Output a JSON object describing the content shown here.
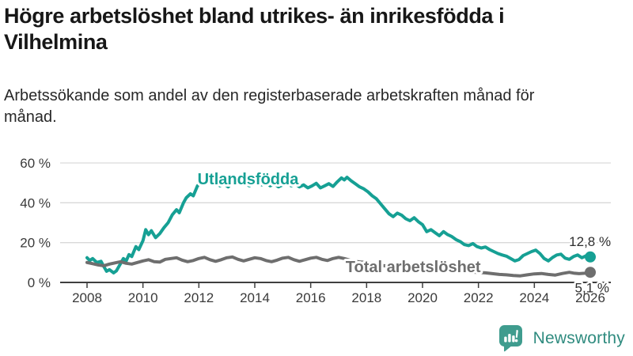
{
  "header": {
    "title": "Högre arbetslöshet bland utrikes- än inrikesfödda i Vilhelmina",
    "subtitle": "Arbetssökande som andel av den registerbaserade arbetskraften månad för månad."
  },
  "footer": {
    "brand": "Newsworthy",
    "logo_icon": "bar-chart-exclamation-pin-icon",
    "logo_color": "#3f9c8e",
    "brand_text_color": "#2f8b7f"
  },
  "chart_data": {
    "type": "line",
    "title": "",
    "xlabel": "",
    "ylabel": "",
    "grid": true,
    "style": {
      "grid_color": "#d9d9d9",
      "axis_color": "#3f3f3f",
      "tick_color": "#3a3a3a",
      "background": "#ffffff"
    },
    "x_axis": {
      "ticks": [
        2008,
        2010,
        2012,
        2014,
        2016,
        2018,
        2020,
        2022,
        2024,
        2026
      ],
      "range": [
        2008,
        2026
      ]
    },
    "y_axis": {
      "ticks": [
        0,
        20,
        40,
        60
      ],
      "tick_suffix": " %",
      "range": [
        0,
        65
      ]
    },
    "series": [
      {
        "name": "Utlandsfödda",
        "color": "#16a094",
        "end_value": 12.8,
        "end_label": "12,8 %",
        "points": [
          [
            2008.0,
            12.4
          ],
          [
            2008.1,
            11.0
          ],
          [
            2008.2,
            12.0
          ],
          [
            2008.35,
            10.0
          ],
          [
            2008.5,
            10.6
          ],
          [
            2008.6,
            8.0
          ],
          [
            2008.7,
            5.6
          ],
          [
            2008.8,
            6.4
          ],
          [
            2008.95,
            4.8
          ],
          [
            2009.05,
            5.8
          ],
          [
            2009.2,
            9.5
          ],
          [
            2009.3,
            12.0
          ],
          [
            2009.4,
            10.8
          ],
          [
            2009.5,
            14.0
          ],
          [
            2009.6,
            13.0
          ],
          [
            2009.75,
            18.0
          ],
          [
            2009.85,
            16.5
          ],
          [
            2010.0,
            21.0
          ],
          [
            2010.1,
            26.5
          ],
          [
            2010.2,
            24.0
          ],
          [
            2010.3,
            26.0
          ],
          [
            2010.45,
            22.5
          ],
          [
            2010.6,
            24.5
          ],
          [
            2010.75,
            27.5
          ],
          [
            2010.9,
            30.0
          ],
          [
            2011.05,
            34.0
          ],
          [
            2011.2,
            36.5
          ],
          [
            2011.3,
            35.0
          ],
          [
            2011.45,
            40.0
          ],
          [
            2011.55,
            42.5
          ],
          [
            2011.7,
            44.5
          ],
          [
            2011.8,
            43.5
          ],
          [
            2011.95,
            48.5
          ],
          [
            2012.1,
            51.0
          ],
          [
            2012.2,
            49.5
          ],
          [
            2012.35,
            52.5
          ],
          [
            2012.5,
            50.5
          ],
          [
            2012.6,
            51.5
          ],
          [
            2012.75,
            48.5
          ],
          [
            2012.9,
            49.5
          ],
          [
            2013.05,
            48.0
          ],
          [
            2013.2,
            50.5
          ],
          [
            2013.35,
            51.0
          ],
          [
            2013.5,
            49.5
          ],
          [
            2013.65,
            50.5
          ],
          [
            2013.8,
            48.5
          ],
          [
            2013.95,
            49.5
          ],
          [
            2014.1,
            50.5
          ],
          [
            2014.25,
            49.0
          ],
          [
            2014.4,
            50.0
          ],
          [
            2014.55,
            48.5
          ],
          [
            2014.7,
            49.5
          ],
          [
            2014.85,
            48.0
          ],
          [
            2015.0,
            49.0
          ],
          [
            2015.15,
            50.0
          ],
          [
            2015.3,
            48.5
          ],
          [
            2015.45,
            49.5
          ],
          [
            2015.6,
            48.0
          ],
          [
            2015.75,
            49.0
          ],
          [
            2015.9,
            47.5
          ],
          [
            2016.05,
            48.5
          ],
          [
            2016.2,
            49.8
          ],
          [
            2016.35,
            47.5
          ],
          [
            2016.5,
            48.5
          ],
          [
            2016.65,
            49.6
          ],
          [
            2016.8,
            48.2
          ],
          [
            2016.95,
            50.5
          ],
          [
            2017.1,
            52.5
          ],
          [
            2017.2,
            51.5
          ],
          [
            2017.3,
            52.8
          ],
          [
            2017.45,
            51.0
          ],
          [
            2017.6,
            49.5
          ],
          [
            2017.75,
            48.0
          ],
          [
            2017.9,
            47.0
          ],
          [
            2018.05,
            45.5
          ],
          [
            2018.2,
            43.5
          ],
          [
            2018.35,
            42.0
          ],
          [
            2018.5,
            39.5
          ],
          [
            2018.65,
            37.0
          ],
          [
            2018.8,
            34.5
          ],
          [
            2018.95,
            33.0
          ],
          [
            2019.1,
            34.8
          ],
          [
            2019.25,
            33.8
          ],
          [
            2019.4,
            32.0
          ],
          [
            2019.55,
            31.0
          ],
          [
            2019.7,
            32.5
          ],
          [
            2019.85,
            30.5
          ],
          [
            2020.0,
            29.0
          ],
          [
            2020.15,
            25.5
          ],
          [
            2020.3,
            26.5
          ],
          [
            2020.45,
            25.0
          ],
          [
            2020.6,
            23.5
          ],
          [
            2020.75,
            25.5
          ],
          [
            2020.9,
            24.0
          ],
          [
            2021.05,
            23.0
          ],
          [
            2021.2,
            21.5
          ],
          [
            2021.35,
            20.5
          ],
          [
            2021.5,
            19.0
          ],
          [
            2021.65,
            18.5
          ],
          [
            2021.8,
            19.5
          ],
          [
            2021.95,
            18.0
          ],
          [
            2022.1,
            17.3
          ],
          [
            2022.25,
            17.8
          ],
          [
            2022.4,
            16.5
          ],
          [
            2022.55,
            15.5
          ],
          [
            2022.7,
            14.5
          ],
          [
            2022.85,
            13.8
          ],
          [
            2023.0,
            13.2
          ],
          [
            2023.15,
            12.0
          ],
          [
            2023.3,
            10.8
          ],
          [
            2023.45,
            11.5
          ],
          [
            2023.6,
            13.5
          ],
          [
            2023.75,
            14.5
          ],
          [
            2023.9,
            15.5
          ],
          [
            2024.05,
            16.2
          ],
          [
            2024.2,
            14.5
          ],
          [
            2024.35,
            12.0
          ],
          [
            2024.5,
            10.8
          ],
          [
            2024.65,
            12.5
          ],
          [
            2024.8,
            13.8
          ],
          [
            2024.95,
            14.2
          ],
          [
            2025.1,
            12.2
          ],
          [
            2025.25,
            11.6
          ],
          [
            2025.4,
            13.0
          ],
          [
            2025.55,
            13.8
          ],
          [
            2025.7,
            12.4
          ],
          [
            2025.85,
            13.4
          ],
          [
            2026.0,
            12.8
          ]
        ]
      },
      {
        "name": "Total arbetslöshet",
        "color": "#6e6e6e",
        "end_value": 5.1,
        "end_label": "5,1 %",
        "points": [
          [
            2008.0,
            10.0
          ],
          [
            2008.2,
            9.4
          ],
          [
            2008.4,
            8.8
          ],
          [
            2008.6,
            8.4
          ],
          [
            2008.8,
            9.2
          ],
          [
            2009.0,
            9.8
          ],
          [
            2009.2,
            10.4
          ],
          [
            2009.4,
            9.6
          ],
          [
            2009.6,
            9.2
          ],
          [
            2009.8,
            10.0
          ],
          [
            2010.0,
            10.8
          ],
          [
            2010.2,
            11.4
          ],
          [
            2010.4,
            10.4
          ],
          [
            2010.6,
            10.2
          ],
          [
            2010.8,
            11.6
          ],
          [
            2011.0,
            12.0
          ],
          [
            2011.2,
            12.4
          ],
          [
            2011.4,
            11.2
          ],
          [
            2011.6,
            10.4
          ],
          [
            2011.8,
            11.0
          ],
          [
            2012.0,
            12.0
          ],
          [
            2012.2,
            12.6
          ],
          [
            2012.4,
            11.4
          ],
          [
            2012.6,
            10.6
          ],
          [
            2012.8,
            11.4
          ],
          [
            2013.0,
            12.4
          ],
          [
            2013.2,
            12.8
          ],
          [
            2013.4,
            11.6
          ],
          [
            2013.6,
            10.8
          ],
          [
            2013.8,
            11.6
          ],
          [
            2014.0,
            12.4
          ],
          [
            2014.2,
            12.0
          ],
          [
            2014.4,
            11.0
          ],
          [
            2014.6,
            10.4
          ],
          [
            2014.8,
            11.2
          ],
          [
            2015.0,
            12.2
          ],
          [
            2015.2,
            12.6
          ],
          [
            2015.4,
            11.4
          ],
          [
            2015.6,
            10.6
          ],
          [
            2015.8,
            11.4
          ],
          [
            2016.0,
            12.2
          ],
          [
            2016.2,
            12.6
          ],
          [
            2016.4,
            11.6
          ],
          [
            2016.6,
            11.0
          ],
          [
            2016.8,
            12.0
          ],
          [
            2017.0,
            12.6
          ],
          [
            2017.2,
            12.0
          ],
          [
            2017.4,
            11.2
          ],
          [
            2017.6,
            10.6
          ],
          [
            2017.8,
            10.2
          ],
          [
            2018.0,
            10.0
          ],
          [
            2018.25,
            9.4
          ],
          [
            2018.5,
            8.6
          ],
          [
            2018.75,
            8.2
          ],
          [
            2019.0,
            8.4
          ],
          [
            2019.25,
            8.0
          ],
          [
            2019.5,
            7.4
          ],
          [
            2019.75,
            7.2
          ],
          [
            2020.0,
            7.8
          ],
          [
            2020.25,
            8.0
          ],
          [
            2020.5,
            7.4
          ],
          [
            2020.75,
            6.8
          ],
          [
            2021.0,
            6.6
          ],
          [
            2021.25,
            6.2
          ],
          [
            2021.5,
            5.6
          ],
          [
            2021.75,
            5.2
          ],
          [
            2022.0,
            5.0
          ],
          [
            2022.25,
            4.8
          ],
          [
            2022.5,
            4.4
          ],
          [
            2022.75,
            4.0
          ],
          [
            2023.0,
            3.8
          ],
          [
            2023.25,
            3.5
          ],
          [
            2023.5,
            3.3
          ],
          [
            2023.75,
            3.8
          ],
          [
            2024.0,
            4.3
          ],
          [
            2024.25,
            4.5
          ],
          [
            2024.5,
            4.0
          ],
          [
            2024.75,
            3.7
          ],
          [
            2025.0,
            4.5
          ],
          [
            2025.25,
            5.1
          ],
          [
            2025.4,
            4.7
          ],
          [
            2025.6,
            4.4
          ],
          [
            2025.8,
            4.6
          ],
          [
            2026.0,
            5.1
          ]
        ]
      }
    ],
    "annotations": [
      {
        "id": "label-utlandsfodda",
        "text": "Utlandsfödda",
        "x": 2011.95,
        "y": 49.3,
        "color": "#16a094",
        "size": 20,
        "weight": "bold",
        "anchor": "start",
        "halo": 6
      },
      {
        "id": "label-total-arbetsloshet",
        "text": "Total arbetslöshet",
        "x": 2017.25,
        "y": 5.2,
        "color": "#6e6e6e",
        "size": 20,
        "weight": "bold",
        "anchor": "start",
        "halo": 6
      },
      {
        "id": "end-value-utlandsfodda",
        "text": "12,8 %",
        "x": 2026.74,
        "y": 18.3,
        "color": "#2e2e2e",
        "size": 17,
        "weight": "normal",
        "anchor": "end",
        "halo": 5
      },
      {
        "id": "end-value-total",
        "text": "5,1 %",
        "x": 2026.68,
        "y": -5.0,
        "color": "#2e2e2e",
        "size": 17,
        "weight": "normal",
        "anchor": "end",
        "halo": 5
      }
    ],
    "legend_position": "inline-labels"
  }
}
